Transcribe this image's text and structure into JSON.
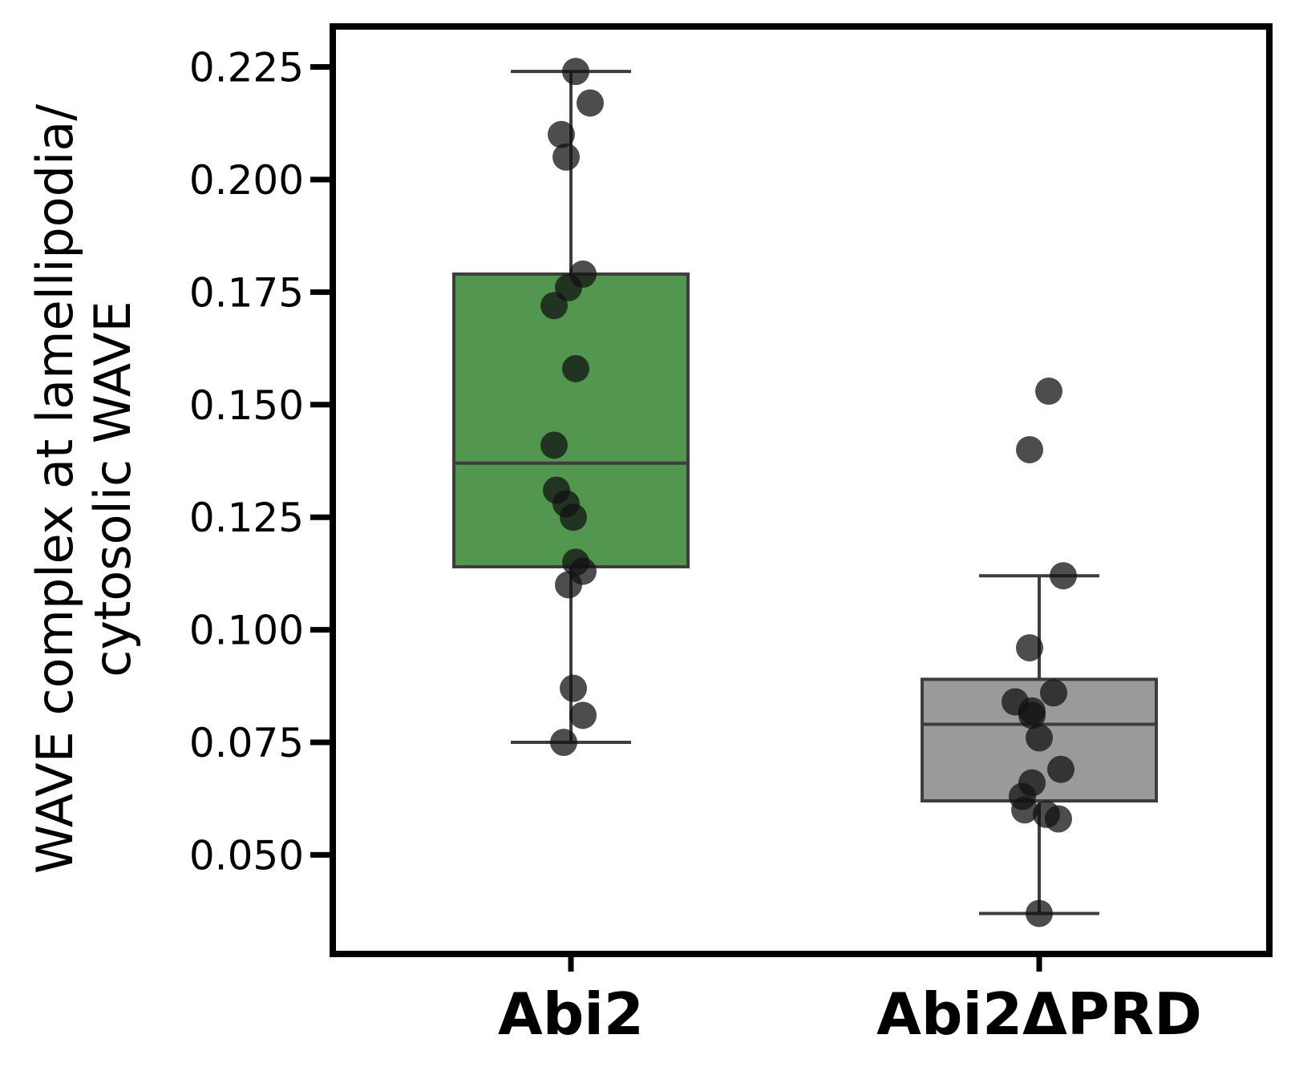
{
  "chart_data": {
    "type": "box",
    "ylabel_lines": [
      "WAVE complex at lamellipodia/",
      "cytosolic WAVE"
    ],
    "xlabel": "",
    "ylim": [
      0.028,
      0.234
    ],
    "yticks": [
      0.05,
      0.075,
      0.1,
      0.125,
      0.15,
      0.175,
      0.2,
      0.225
    ],
    "ytick_labels": [
      "0.050",
      "0.075",
      "0.100",
      "0.125",
      "0.150",
      "0.175",
      "0.200",
      "0.225"
    ],
    "grid": false,
    "categories": [
      "Abi2",
      "Abi2ΔPRD"
    ],
    "box_colors": [
      "#52964f",
      "#9a9a9a"
    ],
    "boxes": [
      {
        "category": "Abi2",
        "whisker_low": 0.075,
        "q1": 0.114,
        "median": 0.137,
        "q3": 0.179,
        "whisker_high": 0.224
      },
      {
        "category": "Abi2ΔPRD",
        "whisker_low": 0.037,
        "q1": 0.062,
        "median": 0.079,
        "q3": 0.089,
        "whisker_high": 0.112
      }
    ],
    "points": [
      [
        {
          "x": 0.02,
          "y": 0.224
        },
        {
          "x": 0.08,
          "y": 0.217
        },
        {
          "x": -0.04,
          "y": 0.21
        },
        {
          "x": -0.02,
          "y": 0.205
        },
        {
          "x": 0.05,
          "y": 0.179
        },
        {
          "x": -0.01,
          "y": 0.176
        },
        {
          "x": -0.07,
          "y": 0.172
        },
        {
          "x": 0.02,
          "y": 0.158
        },
        {
          "x": -0.07,
          "y": 0.141
        },
        {
          "x": -0.06,
          "y": 0.131
        },
        {
          "x": -0.02,
          "y": 0.128
        },
        {
          "x": 0.01,
          "y": 0.125
        },
        {
          "x": 0.02,
          "y": 0.115
        },
        {
          "x": 0.05,
          "y": 0.113
        },
        {
          "x": -0.01,
          "y": 0.11
        },
        {
          "x": 0.01,
          "y": 0.087
        },
        {
          "x": 0.05,
          "y": 0.081
        },
        {
          "x": -0.03,
          "y": 0.075
        }
      ],
      [
        {
          "x": 0.04,
          "y": 0.153
        },
        {
          "x": -0.04,
          "y": 0.14
        },
        {
          "x": 0.1,
          "y": 0.112
        },
        {
          "x": -0.04,
          "y": 0.096
        },
        {
          "x": 0.06,
          "y": 0.086
        },
        {
          "x": -0.1,
          "y": 0.084
        },
        {
          "x": -0.03,
          "y": 0.082
        },
        {
          "x": -0.03,
          "y": 0.081
        },
        {
          "x": 0.0,
          "y": 0.076
        },
        {
          "x": 0.09,
          "y": 0.069
        },
        {
          "x": -0.03,
          "y": 0.066
        },
        {
          "x": -0.07,
          "y": 0.063
        },
        {
          "x": -0.06,
          "y": 0.06
        },
        {
          "x": 0.03,
          "y": 0.059
        },
        {
          "x": 0.08,
          "y": 0.058
        },
        {
          "x": 0.0,
          "y": 0.037
        }
      ]
    ],
    "point_color": "#111111"
  }
}
